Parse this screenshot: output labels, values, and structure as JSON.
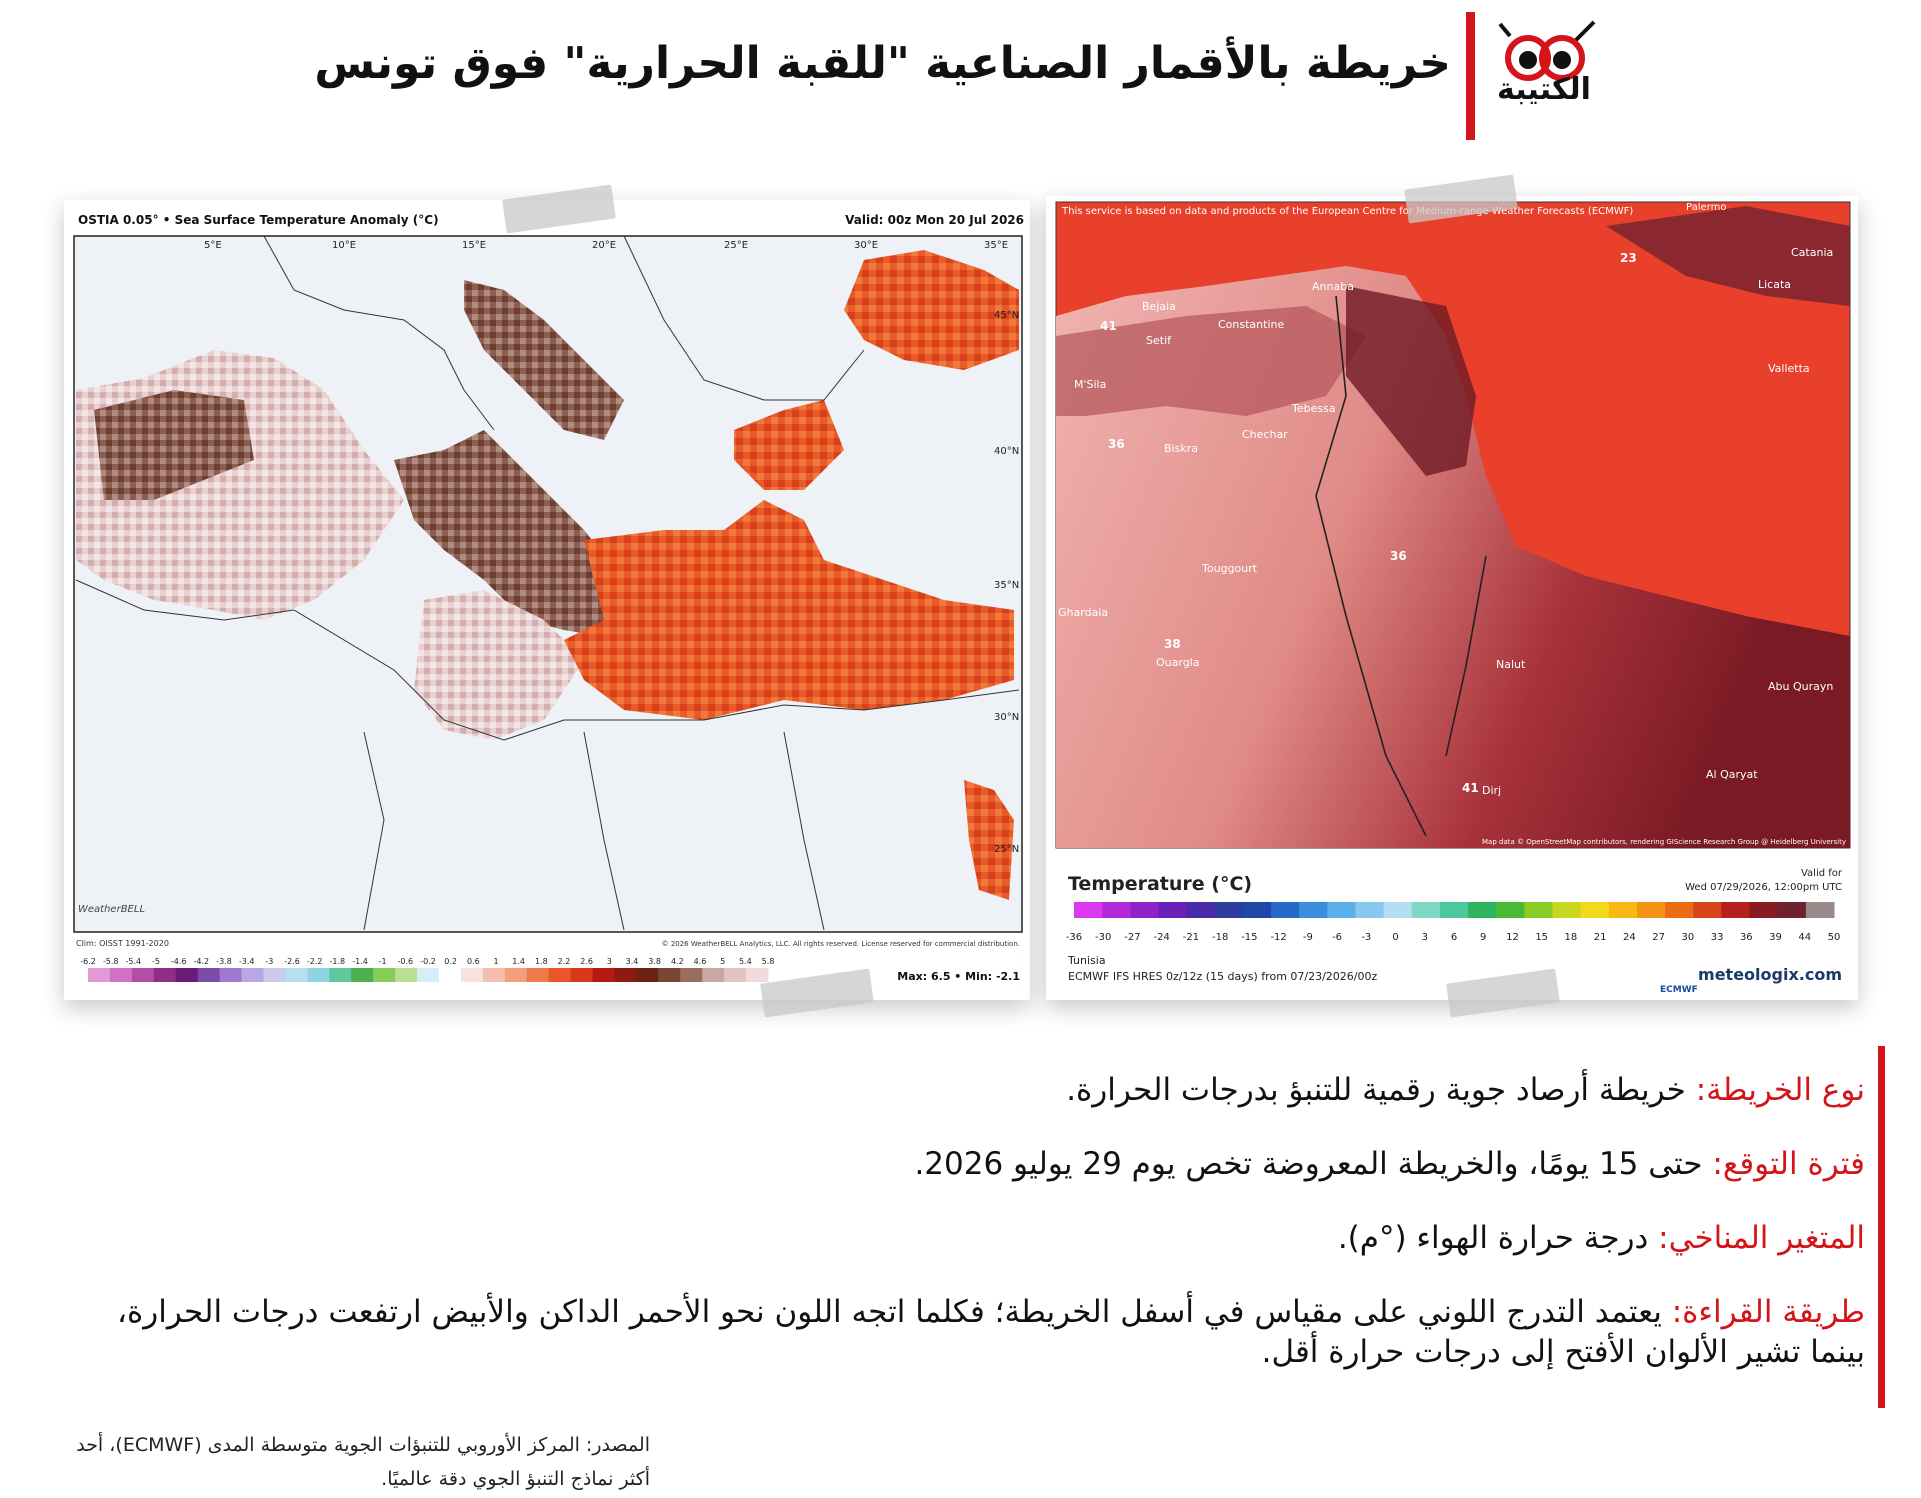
{
  "header": {
    "title": "خريطة بالأقمار الصناعية \"للقبة الحرارية\" فوق تونس",
    "logo_text": "الكتيبة"
  },
  "left_map": {
    "title": "OSTIA 0.05° • Sea Surface Temperature Anomaly (°C)",
    "valid": "Valid: 00z Mon 20 Jul 2026",
    "lon_labels": [
      "5°E",
      "10°E",
      "15°E",
      "20°E",
      "25°E",
      "30°E",
      "35°E"
    ],
    "lat_labels": [
      "45°N",
      "40°N",
      "35°N",
      "30°N",
      "25°N"
    ],
    "clim": "Clim: OISST 1991-2020",
    "copyright": "© 2026 WeatherBELL Analytics, LLC. All rights reserved. License reserved for commercial distribution.",
    "watermark": "WeatherBELL",
    "scale_ticks": [
      "-6.2",
      "-5.8",
      "-5.4",
      "-5",
      "-4.6",
      "-4.2",
      "-3.8",
      "-3.4",
      "-3",
      "-2.6",
      "-2.2",
      "-1.8",
      "-1.4",
      "-1",
      "-0.6",
      "-0.2",
      "0.2",
      "0.6",
      "1",
      "1.4",
      "1.8",
      "2.2",
      "2.6",
      "3",
      "3.4",
      "3.8",
      "4.2",
      "4.6",
      "5",
      "5.4",
      "5.8"
    ],
    "max_min": "Max: 6.5 • Min: -2.1"
  },
  "right_map": {
    "notice": "This service is based on data and products of the European Centre for Medium-range Weather Forecasts (ECMWF)",
    "palermo": "Palermo",
    "places": [
      {
        "name": "Catania"
      },
      {
        "name": "Licata"
      },
      {
        "name": "Valletta"
      },
      {
        "name": "Annaba"
      },
      {
        "name": "Bejaia"
      },
      {
        "name": "Constantine"
      },
      {
        "name": "Setif"
      },
      {
        "name": "M'Sila"
      },
      {
        "name": "Tebessa"
      },
      {
        "name": "Chechar"
      },
      {
        "name": "Biskra"
      },
      {
        "name": "Touggourt"
      },
      {
        "name": "Ghardaia"
      },
      {
        "name": "Ouargla"
      },
      {
        "name": "Nalut"
      },
      {
        "name": "Abu Qurayn"
      },
      {
        "name": "Al Qaryat"
      },
      {
        "name": "Dirj"
      }
    ],
    "temp_labels": [
      {
        "value": "23"
      },
      {
        "value": "41"
      },
      {
        "value": "36"
      },
      {
        "value": "36"
      },
      {
        "value": "38"
      },
      {
        "value": "41"
      }
    ],
    "attribution": "Map data © OpenStreetMap contributors, rendering GIScience Research Group @ Heidelberg University",
    "legend_title": "Temperature (°C)",
    "valid_label": "Valid for",
    "valid_value": "Wed 07/29/2026, 12:00pm UTC",
    "scale_ticks": [
      "-36",
      "-30",
      "-27",
      "-24",
      "-21",
      "-18",
      "-15",
      "-12",
      "-9",
      "-6",
      "-3",
      "0",
      "3",
      "6",
      "9",
      "12",
      "15",
      "18",
      "21",
      "24",
      "27",
      "30",
      "33",
      "36",
      "39",
      "44",
      "50"
    ],
    "region": "Tunisia",
    "model": "ECMWF IFS HRES 0z/12z (15 days) from 07/23/2026/00z",
    "ecmwf_logo": "ECMWF",
    "brand": "meteologix.com"
  },
  "info": [
    {
      "label": "نوع الخريطة:",
      "text": "خريطة أرصاد جوية رقمية للتنبؤ بدرجات الحرارة."
    },
    {
      "label": "فترة التوقع:",
      "text": "حتى 15 يومًا، والخريطة المعروضة تخص يوم 29 يوليو 2026."
    },
    {
      "label": "المتغير المناخي:",
      "text": "درجة حرارة الهواء (°م)."
    },
    {
      "label": "طريقة القراءة:",
      "text": "يعتمد التدرج اللوني على مقياس في أسفل الخريطة؛ فكلما اتجه اللون نحو الأحمر الداكن والأبيض ارتفعت درجات الحرارة، بينما تشير الألوان الأفتح إلى درجات حرارة أقل."
    }
  ],
  "source": "المصدر: المركز الأوروبي للتنبؤات الجوية متوسطة المدى (ECMWF)، أحد أكثر نماذج التنبؤ الجوي دقة عالميًا.",
  "colors": {
    "accent": "#d3141b",
    "sst_left_colors": [
      "#e29ad6",
      "#cf72c4",
      "#b34da6",
      "#8e2e86",
      "#6a1a77",
      "#7c4aa8",
      "#9d7ad0",
      "#b9a6e2",
      "#d0c9ee",
      "#b7e0ee",
      "#8ed4e2",
      "#63c6a0",
      "#4cb04c",
      "#86cc5c",
      "#b8e090",
      "#d8eef6",
      "#ffffff",
      "#f7e2e0",
      "#f3c0b0",
      "#f2a07c",
      "#ef7a4a",
      "#e8562a",
      "#d8381a",
      "#b41a10",
      "#8c1a10",
      "#6e2214",
      "#7a4634",
      "#9a6e5e",
      "#c8a8a0",
      "#e2c4c6",
      "#f0dcdc"
    ],
    "temp_colors": [
      "#d93af0",
      "#b52ad8",
      "#8f24c6",
      "#6a22b6",
      "#4a2aa6",
      "#2e3ca0",
      "#2048a8",
      "#2668c6",
      "#3a8ee0",
      "#5cb0ea",
      "#86c8ee",
      "#b4dff2",
      "#7fd8c4",
      "#4cc89a",
      "#2eb460",
      "#4aba34",
      "#8ccc26",
      "#c8d820",
      "#f4d81c",
      "#f8b818",
      "#f49416",
      "#ea6c16",
      "#d8441a",
      "#b4201c",
      "#8a1a22",
      "#6e2230",
      "#9a8a8a"
    ]
  }
}
